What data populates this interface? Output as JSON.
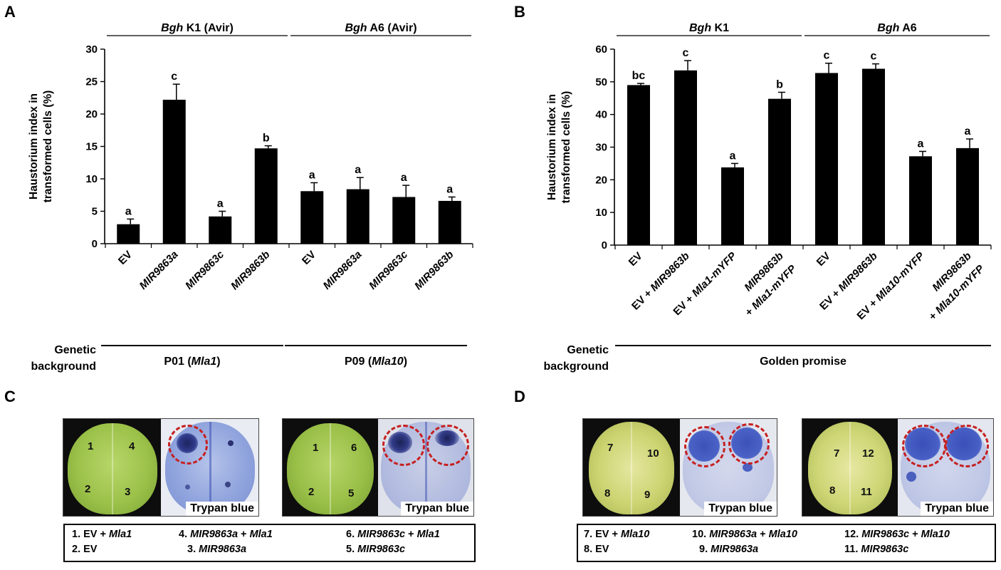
{
  "panels": {
    "a": "A",
    "b": "B",
    "c": "C",
    "d": "D"
  },
  "chart_data": [
    {
      "type": "bar",
      "panel": "A",
      "ylabel": "Haustorium index in transformed cells (%)",
      "ylim": [
        0,
        30
      ],
      "yticks": [
        0,
        5,
        10,
        15,
        20,
        25,
        30
      ],
      "groups": [
        {
          "label_main": "Bgh",
          "label_rest": "K1 (Avir)",
          "start": 0,
          "end": 3
        },
        {
          "label_main": "Bgh",
          "label_rest": "A6 (Avir)",
          "start": 4,
          "end": 7
        }
      ],
      "categories": [
        "EV",
        "MIR9863a",
        "MIR9863c",
        "MIR9863b",
        "EV",
        "MIR9863a",
        "MIR9863c",
        "MIR9863b"
      ],
      "category_italic": [
        false,
        true,
        true,
        true,
        false,
        true,
        true,
        true
      ],
      "values": [
        3.0,
        22.2,
        4.2,
        14.7,
        8.1,
        8.4,
        7.2,
        6.6
      ],
      "errors": [
        0.8,
        2.4,
        0.8,
        0.4,
        1.3,
        1.8,
        1.8,
        0.6
      ],
      "letters": [
        "a",
        "c",
        "a",
        "b",
        "a",
        "a",
        "a",
        "a"
      ],
      "genetic_background_label": [
        "Genetic",
        "background"
      ],
      "backgrounds": [
        {
          "pre": "P01 (",
          "italic": "Mla1",
          "post": ")",
          "start": 0,
          "end": 3
        },
        {
          "pre": "P09 (",
          "italic": "Mla10",
          "post": ")",
          "start": 4,
          "end": 7
        }
      ]
    },
    {
      "type": "bar",
      "panel": "B",
      "ylabel": "Haustorium index in transformed cells (%)",
      "ylim": [
        0,
        60
      ],
      "yticks": [
        0,
        10,
        20,
        30,
        40,
        50,
        60
      ],
      "groups": [
        {
          "label_main": "Bgh",
          "label_rest": "K1",
          "start": 0,
          "end": 3
        },
        {
          "label_main": "Bgh",
          "label_rest": "A6",
          "start": 4,
          "end": 7
        }
      ],
      "categories": [
        [
          "EV"
        ],
        [
          "EV + MIR9863b"
        ],
        [
          "EV + Mla1-mYFP"
        ],
        [
          "MIR9863b",
          "+ Mla1-mYFP"
        ],
        [
          "EV"
        ],
        [
          "EV + MIR9863b"
        ],
        [
          "EV + Mla10-mYFP"
        ],
        [
          "MIR9863b",
          "+ Mla10-mYFP"
        ]
      ],
      "values": [
        49.0,
        53.5,
        23.8,
        44.8,
        52.7,
        54.0,
        27.2,
        29.7
      ],
      "errors": [
        0.5,
        3.0,
        1.2,
        2.0,
        3.0,
        1.5,
        1.5,
        2.8
      ],
      "letters": [
        "bc",
        "c",
        "a",
        "b",
        "c",
        "c",
        "a",
        "a"
      ],
      "genetic_background_label": [
        "Genetic",
        "background"
      ],
      "backgrounds": [
        {
          "pre": "Golden promise",
          "italic": "",
          "post": "",
          "start": 0,
          "end": 7
        }
      ]
    }
  ],
  "photos": {
    "c": [
      {
        "numbers": [
          "1",
          "4",
          "2",
          "3"
        ],
        "label": "Trypan blue"
      },
      {
        "numbers": [
          "1",
          "6",
          "2",
          "5"
        ],
        "label": "Trypan blue"
      }
    ],
    "d": [
      {
        "numbers": [
          "7",
          "10",
          "8",
          "9"
        ],
        "label": "Trypan blue"
      },
      {
        "numbers": [
          "7",
          "12",
          "8",
          "11"
        ],
        "label": "Trypan blue"
      }
    ]
  },
  "legend_c": {
    "items": [
      {
        "num": "1. EV + ",
        "italic": "Mla1",
        "rest": ""
      },
      {
        "num": "4. ",
        "italic": "MIR9863a",
        "rest": " + ",
        "italic2": "Mla1"
      },
      {
        "num": "6. ",
        "italic": "MIR9863c",
        "rest": " + ",
        "italic2": "Mla1"
      },
      {
        "num": "2. EV",
        "italic": "",
        "rest": ""
      },
      {
        "num": "3. ",
        "italic": "MIR9863a",
        "rest": ""
      },
      {
        "num": "5. ",
        "italic": "MIR9863c",
        "rest": ""
      }
    ]
  },
  "legend_d": {
    "items": [
      {
        "num": "7. EV + ",
        "italic": "Mla10",
        "rest": ""
      },
      {
        "num": "10. ",
        "italic": "MIR9863a",
        "rest": " + ",
        "italic2": "Mla10"
      },
      {
        "num": "12. ",
        "italic": "MIR9863c",
        "rest": " + ",
        "italic2": "Mla10"
      },
      {
        "num": "8. EV",
        "italic": "",
        "rest": ""
      },
      {
        "num": "9. ",
        "italic": "MIR9863a",
        "rest": ""
      },
      {
        "num": "11. ",
        "italic": "MIR9863c",
        "rest": ""
      }
    ]
  }
}
